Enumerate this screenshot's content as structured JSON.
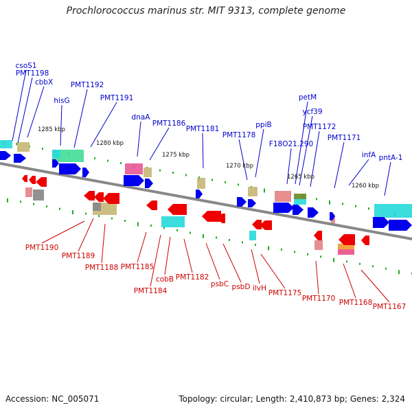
{
  "title": "Prochlorococcus marinus str. MIT 9313, complete genome",
  "footer": {
    "accession": "Accession: NC_005071",
    "topology": "Topology: circular; Length: 2,410,873 bp; Genes: 2,324"
  },
  "colors": {
    "forward_label": "#0000cc",
    "reverse_label": "#cc0000",
    "forward_arrow": "#0000ee",
    "reverse_arrow": "#ee0000",
    "backbone": "#888888",
    "tick": "#22aa22",
    "cyan_block": "#2adada",
    "teal_block": "#44dd99",
    "khaki_block": "#c8b878",
    "pink_block": "#e85a98",
    "salmon_block": "#e58585",
    "olive_block": "#6d8a2a",
    "orange_block": "#f29a2e"
  },
  "scale_labels": [
    "1285 kbp",
    "1280 kbp",
    "1275 kbp",
    "1270 kbp",
    "1265 kbp",
    "1260 kbp"
  ],
  "forward_genes": [
    "csoS1",
    "PMT1198",
    "cbbX",
    "hisG",
    "PMT1192",
    "PMT1191",
    "dnaA",
    "PMT1186",
    "PMT1181",
    "PMT1178",
    "ppiB",
    "petM",
    "ycf39",
    "F18O21.290",
    "PMT1172",
    "PMT1171",
    "infA",
    "pntA-1"
  ],
  "reverse_genes": [
    "PMT1190",
    "PMT1189",
    "PMT1188",
    "PMT1185",
    "PMT1184",
    "cobB",
    "PMT1182",
    "psbC",
    "psbD",
    "ilvH",
    "PMT1175",
    "PMT1170",
    "PMT1168",
    "PMT1167"
  ]
}
